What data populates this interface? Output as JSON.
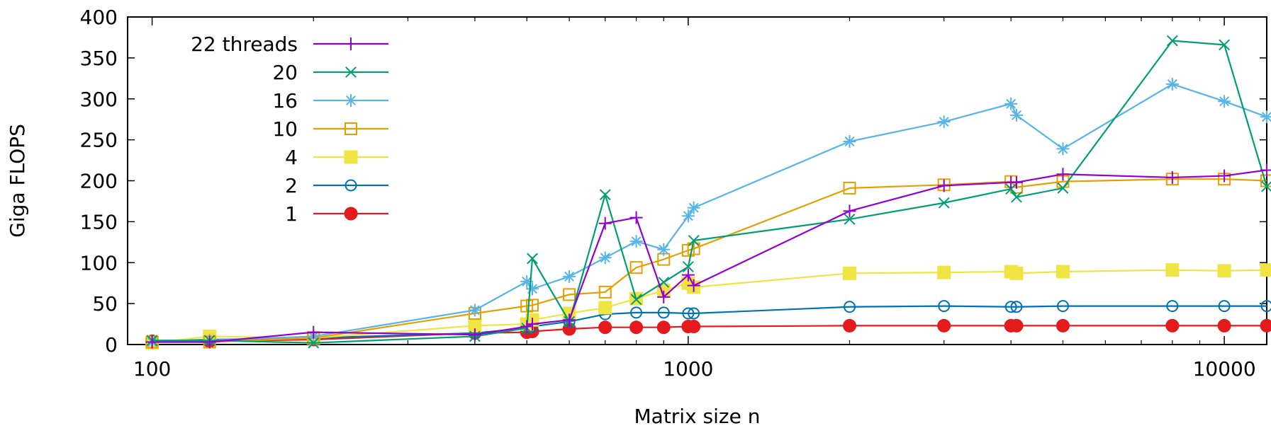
{
  "chart_data": {
    "type": "line",
    "title": "",
    "xlabel": "Matrix size n",
    "ylabel": "Giga FLOPS",
    "xscale": "log",
    "xlim": [
      90,
      12000
    ],
    "ylim": [
      0,
      400
    ],
    "xticks": [
      {
        "value": 100,
        "label": "100"
      },
      {
        "value": 1000,
        "label": "1000"
      },
      {
        "value": 10000,
        "label": "10000"
      }
    ],
    "yticks": [
      {
        "value": 0,
        "label": "0"
      },
      {
        "value": 50,
        "label": "50"
      },
      {
        "value": 100,
        "label": "100"
      },
      {
        "value": 150,
        "label": "150"
      },
      {
        "value": 200,
        "label": "200"
      },
      {
        "value": 250,
        "label": "250"
      },
      {
        "value": 300,
        "label": "300"
      },
      {
        "value": 350,
        "label": "350"
      },
      {
        "value": 400,
        "label": "400"
      }
    ],
    "grid": false,
    "legend_position": "top-left",
    "series": [
      {
        "name": "22 threads",
        "color": "#9400d3",
        "marker": "plus",
        "x": [
          100,
          128,
          200,
          400,
          500,
          512,
          600,
          700,
          800,
          900,
          1000,
          1024,
          2000,
          3000,
          4000,
          4096,
          5000,
          8000,
          10000,
          12000
        ],
        "y": [
          3,
          3,
          15,
          12,
          22,
          25,
          30,
          148,
          155,
          58,
          85,
          72,
          163,
          194,
          198,
          198,
          208,
          204,
          206,
          213
        ]
      },
      {
        "name": "20",
        "color": "#009e73",
        "marker": "x",
        "x": [
          100,
          128,
          200,
          400,
          500,
          512,
          600,
          700,
          800,
          900,
          1000,
          1024,
          2000,
          3000,
          4000,
          4096,
          5000,
          8000,
          10000,
          12000
        ],
        "y": [
          5,
          5,
          2,
          10,
          20,
          105,
          28,
          183,
          55,
          76,
          95,
          127,
          153,
          173,
          190,
          180,
          191,
          371,
          366,
          193
        ]
      },
      {
        "name": "16",
        "color": "#56b4e9",
        "marker": "star",
        "x": [
          100,
          128,
          200,
          400,
          500,
          512,
          600,
          700,
          800,
          900,
          1000,
          1024,
          2000,
          3000,
          4000,
          4096,
          5000,
          8000,
          10000,
          12000
        ],
        "y": [
          3,
          5,
          10,
          42,
          77,
          68,
          83,
          106,
          126,
          116,
          157,
          167,
          248,
          272,
          294,
          280,
          239,
          318,
          297,
          278
        ]
      },
      {
        "name": "10",
        "color": "#e69f00",
        "marker": "open-square",
        "x": [
          100,
          128,
          200,
          400,
          500,
          512,
          600,
          700,
          800,
          900,
          1000,
          1024,
          2000,
          3000,
          4000,
          4096,
          5000,
          8000,
          10000,
          12000
        ],
        "y": [
          3,
          3,
          8,
          38,
          47,
          48,
          61,
          64,
          94,
          104,
          115,
          117,
          191,
          195,
          199,
          192,
          199,
          202,
          202,
          200
        ]
      },
      {
        "name": "4",
        "color": "#f0e442",
        "marker": "filled-square",
        "x": [
          100,
          128,
          200,
          400,
          500,
          512,
          600,
          700,
          800,
          900,
          1000,
          1024,
          2000,
          3000,
          4000,
          4096,
          5000,
          8000,
          10000,
          12000
        ],
        "y": [
          2,
          10,
          8,
          23,
          25,
          30,
          38,
          45,
          56,
          66,
          75,
          70,
          87,
          88,
          89,
          87,
          89,
          91,
          90,
          91
        ]
      },
      {
        "name": "2",
        "color": "#0072b2",
        "marker": "open-circle",
        "x": [
          100,
          128,
          200,
          400,
          500,
          512,
          600,
          700,
          800,
          900,
          1000,
          1024,
          2000,
          3000,
          4000,
          4096,
          5000,
          8000,
          10000,
          12000
        ],
        "y": [
          4,
          6,
          8,
          14,
          20,
          22,
          28,
          37,
          39,
          39,
          38,
          38,
          46,
          47,
          46,
          46,
          47,
          47,
          47,
          47
        ]
      },
      {
        "name": "1",
        "color": "#e41a1c",
        "marker": "filled-circle",
        "x": [
          100,
          128,
          200,
          400,
          500,
          512,
          600,
          700,
          800,
          900,
          1000,
          1024,
          2000,
          3000,
          4000,
          4096,
          5000,
          8000,
          10000,
          12000
        ],
        "y": [
          4,
          4,
          6,
          14,
          15,
          16,
          19,
          21,
          21,
          21,
          22,
          22,
          23,
          23,
          23,
          23,
          23,
          23,
          23,
          23
        ]
      }
    ]
  }
}
